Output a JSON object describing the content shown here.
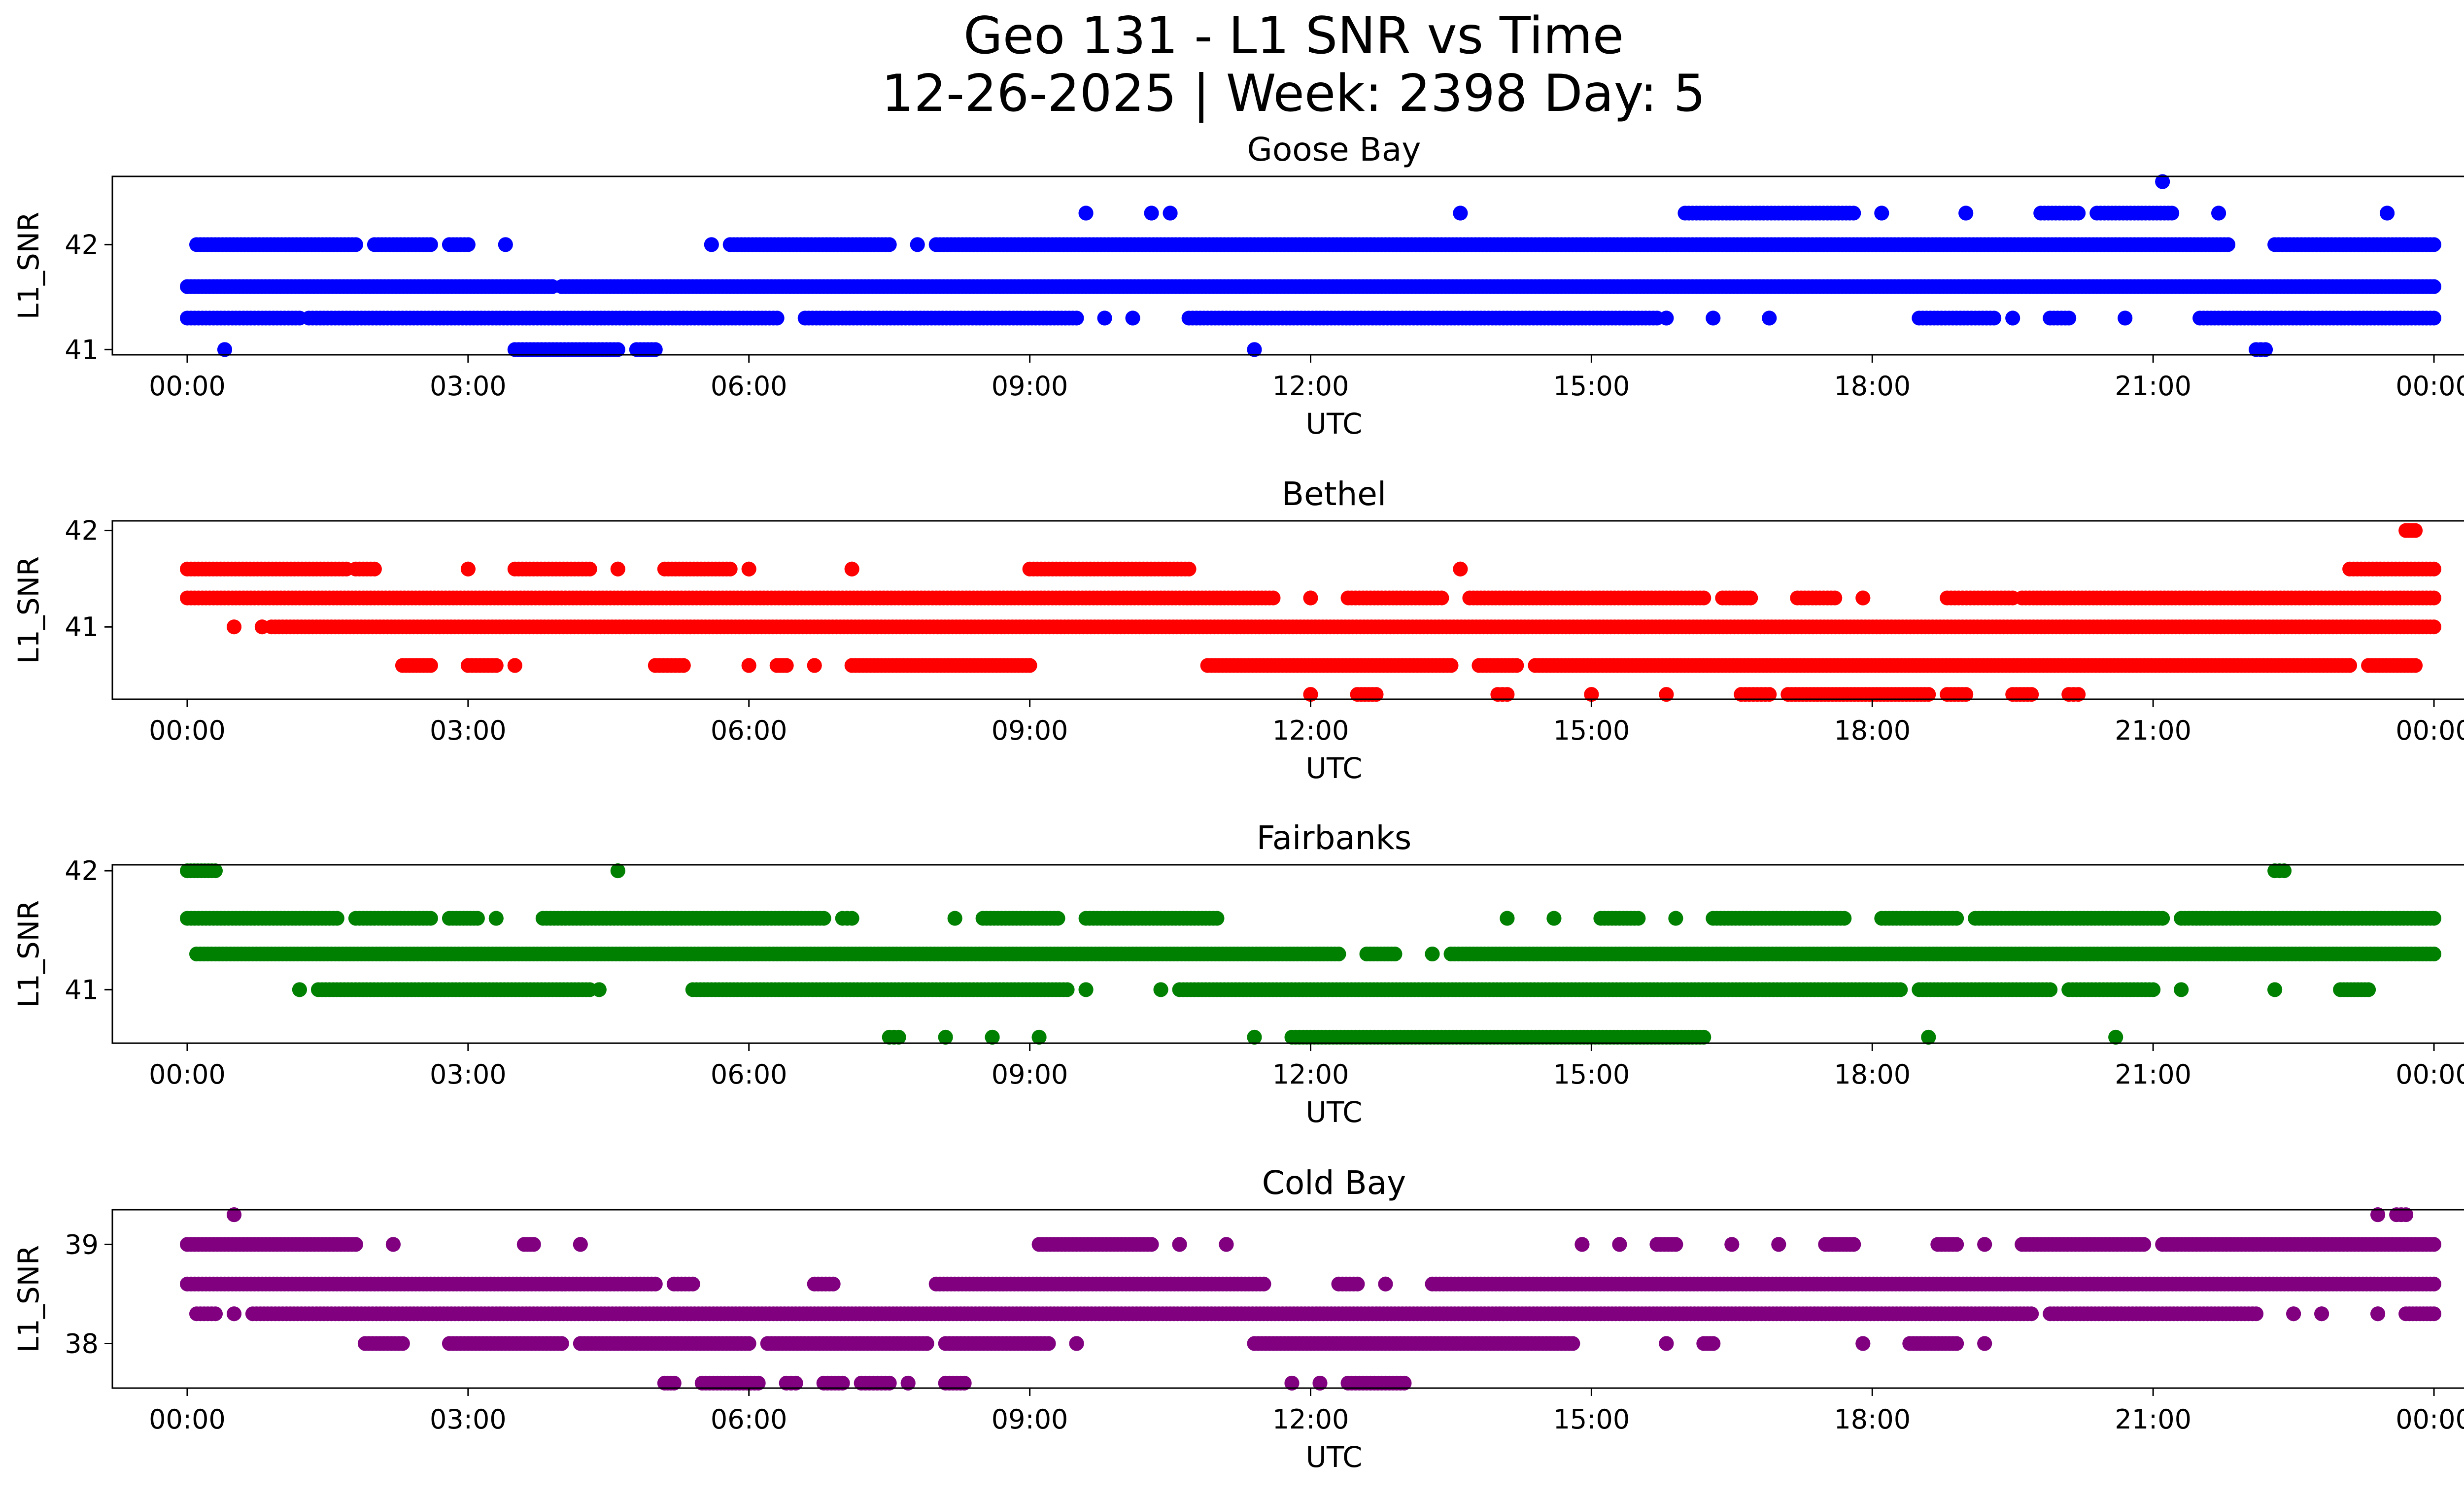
{
  "title_line1": "Geo 131 - L1 SNR vs Time",
  "title_line2": "12-26-2025 | Week: 2398 Day: 5",
  "chart_data": [
    {
      "type": "scatter",
      "title": "Goose Bay",
      "xlabel": "UTC",
      "ylabel": "L1_SNR",
      "color": "#0000ff",
      "xlim": [
        -0.8,
        25.3
      ],
      "ylim": [
        40.95,
        42.65
      ],
      "x_ticks": [
        "00:00",
        "03:00",
        "06:00",
        "09:00",
        "12:00",
        "15:00",
        "18:00",
        "21:00",
        "00:00"
      ],
      "y_ticks": [
        41,
        42
      ],
      "levels": [
        {
          "y": 41.0,
          "segments": [
            [
              0.4,
              0.4
            ],
            [
              3.5,
              4.6
            ],
            [
              4.8,
              5.0
            ],
            [
              11.4,
              11.4
            ],
            [
              22.1,
              22.2
            ]
          ]
        },
        {
          "y": 41.3,
          "segments": [
            [
              0.0,
              1.2
            ],
            [
              1.3,
              6.3
            ],
            [
              6.6,
              9.5
            ],
            [
              9.8,
              9.8
            ],
            [
              10.1,
              10.1
            ],
            [
              10.7,
              15.7
            ],
            [
              15.8,
              15.8
            ],
            [
              16.3,
              16.3
            ],
            [
              16.9,
              16.9
            ],
            [
              18.5,
              19.3
            ],
            [
              19.5,
              19.5
            ],
            [
              19.9,
              20.1
            ],
            [
              20.7,
              20.7
            ],
            [
              21.5,
              24.0
            ]
          ]
        },
        {
          "y": 41.6,
          "segments": [
            [
              0.0,
              3.9
            ],
            [
              4.0,
              24.0
            ]
          ]
        },
        {
          "y": 42.0,
          "segments": [
            [
              0.1,
              1.8
            ],
            [
              2.0,
              2.6
            ],
            [
              2.8,
              3.0
            ],
            [
              3.4,
              3.4
            ],
            [
              5.6,
              5.6
            ],
            [
              5.8,
              7.5
            ],
            [
              7.8,
              7.8
            ],
            [
              8.0,
              21.8
            ],
            [
              22.3,
              24.0
            ]
          ]
        },
        {
          "y": 42.3,
          "segments": [
            [
              9.6,
              9.6
            ],
            [
              10.3,
              10.3
            ],
            [
              10.5,
              10.5
            ],
            [
              13.6,
              13.6
            ],
            [
              16.0,
              17.8
            ],
            [
              18.1,
              18.1
            ],
            [
              19.0,
              19.0
            ],
            [
              19.8,
              20.2
            ],
            [
              20.4,
              21.2
            ],
            [
              21.7,
              21.7
            ],
            [
              23.5,
              23.5
            ]
          ]
        },
        {
          "y": 42.6,
          "segments": [
            [
              21.1,
              21.1
            ]
          ]
        }
      ]
    },
    {
      "type": "scatter",
      "title": "Bethel",
      "xlabel": "UTC",
      "ylabel": "L1_SNR",
      "color": "#ff0000",
      "xlim": [
        -0.8,
        25.3
      ],
      "ylim": [
        40.25,
        42.1
      ],
      "x_ticks": [
        "00:00",
        "03:00",
        "06:00",
        "09:00",
        "12:00",
        "15:00",
        "18:00",
        "21:00",
        "00:00"
      ],
      "y_ticks": [
        41,
        42
      ],
      "levels": [
        {
          "y": 40.3,
          "segments": [
            [
              12.0,
              12.0
            ],
            [
              12.5,
              12.7
            ],
            [
              14.0,
              14.1
            ],
            [
              15.0,
              15.0
            ],
            [
              15.8,
              15.8
            ],
            [
              16.6,
              16.9
            ],
            [
              17.1,
              18.6
            ],
            [
              18.8,
              19.0
            ],
            [
              19.5,
              19.7
            ],
            [
              20.1,
              20.2
            ]
          ]
        },
        {
          "y": 40.6,
          "segments": [
            [
              2.3,
              2.6
            ],
            [
              3.0,
              3.3
            ],
            [
              3.5,
              3.5
            ],
            [
              5.0,
              5.3
            ],
            [
              6.0,
              6.0
            ],
            [
              6.3,
              6.4
            ],
            [
              6.7,
              6.7
            ],
            [
              7.1,
              9.0
            ],
            [
              10.9,
              13.5
            ],
            [
              13.8,
              14.2
            ],
            [
              14.4,
              23.1
            ],
            [
              23.3,
              23.8
            ]
          ]
        },
        {
          "y": 41.0,
          "segments": [
            [
              0.5,
              0.5
            ],
            [
              0.8,
              0.8
            ],
            [
              0.9,
              24.0
            ]
          ]
        },
        {
          "y": 41.3,
          "segments": [
            [
              0.0,
              11.6
            ],
            [
              12.0,
              12.0
            ],
            [
              12.4,
              13.4
            ],
            [
              13.7,
              16.2
            ],
            [
              16.4,
              16.7
            ],
            [
              17.2,
              17.6
            ],
            [
              17.9,
              17.9
            ],
            [
              18.8,
              19.5
            ],
            [
              19.6,
              24.0
            ]
          ]
        },
        {
          "y": 41.6,
          "segments": [
            [
              0.0,
              1.7
            ],
            [
              1.8,
              2.0
            ],
            [
              3.0,
              3.0
            ],
            [
              3.5,
              4.3
            ],
            [
              4.6,
              4.6
            ],
            [
              5.1,
              5.8
            ],
            [
              6.0,
              6.0
            ],
            [
              7.1,
              7.1
            ],
            [
              9.0,
              10.7
            ],
            [
              13.6,
              13.6
            ],
            [
              23.1,
              24.0
            ]
          ]
        },
        {
          "y": 42.0,
          "segments": [
            [
              23.7,
              23.8
            ]
          ]
        }
      ]
    },
    {
      "type": "scatter",
      "title": "Fairbanks",
      "xlabel": "UTC",
      "ylabel": "L1_SNR",
      "color": "#008000",
      "xlim": [
        -0.8,
        25.3
      ],
      "ylim": [
        40.55,
        42.05
      ],
      "x_ticks": [
        "00:00",
        "03:00",
        "06:00",
        "09:00",
        "12:00",
        "15:00",
        "18:00",
        "21:00",
        "00:00"
      ],
      "y_ticks": [
        41,
        42
      ],
      "levels": [
        {
          "y": 40.6,
          "segments": [
            [
              7.5,
              7.6
            ],
            [
              8.1,
              8.1
            ],
            [
              8.6,
              8.6
            ],
            [
              9.1,
              9.1
            ],
            [
              11.4,
              11.4
            ],
            [
              11.8,
              16.2
            ],
            [
              18.6,
              18.6
            ],
            [
              20.6,
              20.6
            ]
          ]
        },
        {
          "y": 41.0,
          "segments": [
            [
              1.2,
              1.2
            ],
            [
              1.4,
              4.3
            ],
            [
              4.4,
              4.4
            ],
            [
              5.4,
              9.4
            ],
            [
              9.6,
              9.6
            ],
            [
              10.4,
              10.4
            ],
            [
              10.6,
              18.3
            ],
            [
              18.5,
              19.9
            ],
            [
              20.1,
              21.0
            ],
            [
              21.3,
              21.3
            ],
            [
              22.3,
              22.3
            ],
            [
              23.0,
              23.3
            ]
          ]
        },
        {
          "y": 41.3,
          "segments": [
            [
              0.1,
              12.3
            ],
            [
              12.6,
              12.9
            ],
            [
              13.3,
              13.3
            ],
            [
              13.5,
              24.0
            ]
          ]
        },
        {
          "y": 41.6,
          "segments": [
            [
              0.0,
              1.6
            ],
            [
              1.8,
              2.6
            ],
            [
              2.8,
              3.1
            ],
            [
              3.3,
              3.3
            ],
            [
              3.8,
              6.8
            ],
            [
              7.0,
              7.1
            ],
            [
              8.2,
              8.2
            ],
            [
              8.5,
              9.3
            ],
            [
              9.6,
              11.0
            ],
            [
              14.1,
              14.1
            ],
            [
              14.6,
              14.6
            ],
            [
              15.1,
              15.5
            ],
            [
              15.9,
              15.9
            ],
            [
              16.3,
              17.7
            ],
            [
              18.1,
              18.9
            ],
            [
              19.1,
              21.1
            ],
            [
              21.3,
              24.0
            ]
          ]
        },
        {
          "y": 42.0,
          "segments": [
            [
              0.0,
              0.3
            ],
            [
              4.6,
              4.6
            ],
            [
              22.3,
              22.4
            ]
          ]
        }
      ]
    },
    {
      "type": "scatter",
      "title": "Cold Bay",
      "xlabel": "UTC",
      "ylabel": "L1_SNR",
      "color": "#800080",
      "xlim": [
        -0.8,
        25.3
      ],
      "ylim": [
        37.55,
        39.35
      ],
      "x_ticks": [
        "00:00",
        "03:00",
        "06:00",
        "09:00",
        "12:00",
        "15:00",
        "18:00",
        "21:00",
        "00:00"
      ],
      "y_ticks": [
        38,
        39
      ],
      "levels": [
        {
          "y": 37.6,
          "segments": [
            [
              5.1,
              5.2
            ],
            [
              5.5,
              6.1
            ],
            [
              6.4,
              6.5
            ],
            [
              6.8,
              7.0
            ],
            [
              7.2,
              7.5
            ],
            [
              7.7,
              7.7
            ],
            [
              8.1,
              8.3
            ],
            [
              11.8,
              11.8
            ],
            [
              12.1,
              12.1
            ],
            [
              12.4,
              13.0
            ]
          ]
        },
        {
          "y": 38.0,
          "segments": [
            [
              1.9,
              2.3
            ],
            [
              2.8,
              4.0
            ],
            [
              4.2,
              6.0
            ],
            [
              6.2,
              7.9
            ],
            [
              8.1,
              9.2
            ],
            [
              9.5,
              9.5
            ],
            [
              11.4,
              14.8
            ],
            [
              15.8,
              15.8
            ],
            [
              16.2,
              16.3
            ],
            [
              17.9,
              17.9
            ],
            [
              18.4,
              18.9
            ],
            [
              19.2,
              19.2
            ]
          ]
        },
        {
          "y": 38.3,
          "segments": [
            [
              0.1,
              0.3
            ],
            [
              0.5,
              0.5
            ],
            [
              0.7,
              19.7
            ],
            [
              19.9,
              22.1
            ],
            [
              22.5,
              22.5
            ],
            [
              22.8,
              22.8
            ],
            [
              23.4,
              23.4
            ],
            [
              23.7,
              24.0
            ]
          ]
        },
        {
          "y": 38.6,
          "segments": [
            [
              0.0,
              5.0
            ],
            [
              5.2,
              5.4
            ],
            [
              6.7,
              6.9
            ],
            [
              8.0,
              11.5
            ],
            [
              12.3,
              12.5
            ],
            [
              12.8,
              12.8
            ],
            [
              13.3,
              24.0
            ]
          ]
        },
        {
          "y": 39.0,
          "segments": [
            [
              0.0,
              1.8
            ],
            [
              2.2,
              2.2
            ],
            [
              3.6,
              3.7
            ],
            [
              4.2,
              4.2
            ],
            [
              9.1,
              10.3
            ],
            [
              10.6,
              10.6
            ],
            [
              11.1,
              11.1
            ],
            [
              14.9,
              14.9
            ],
            [
              15.3,
              15.3
            ],
            [
              15.7,
              15.9
            ],
            [
              16.5,
              16.5
            ],
            [
              17.0,
              17.0
            ],
            [
              17.5,
              17.8
            ],
            [
              18.7,
              18.9
            ],
            [
              19.2,
              19.2
            ],
            [
              19.6,
              20.9
            ],
            [
              21.1,
              24.0
            ]
          ]
        },
        {
          "y": 39.3,
          "segments": [
            [
              0.5,
              0.5
            ],
            [
              23.4,
              23.4
            ],
            [
              23.6,
              23.7
            ]
          ]
        }
      ]
    }
  ]
}
